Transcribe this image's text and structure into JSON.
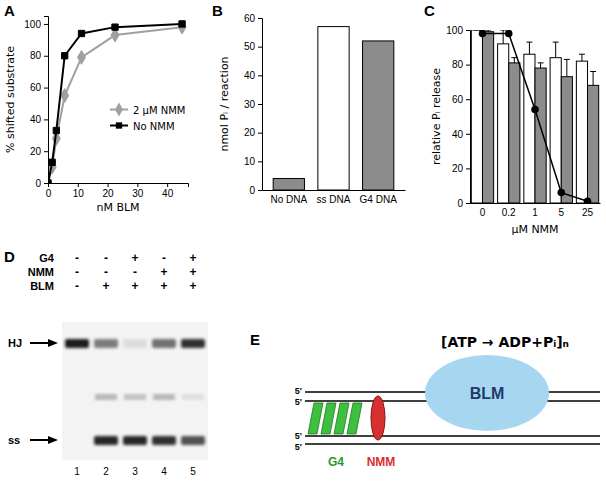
{
  "panel_labels": [
    "A",
    "B",
    "C",
    "D",
    "E"
  ],
  "chart_data": [
    {
      "type": "line",
      "xlabel": "nM BLM",
      "ylabel": "% shifted substrate",
      "x": [
        0,
        1.4,
        2.8,
        5.6,
        11.25,
        22.5,
        45
      ],
      "series": [
        {
          "name": "2 μM NMM",
          "color": "#a0a0a0",
          "marker": "diamond",
          "values": [
            0,
            10,
            28,
            55,
            79,
            93,
            98
          ]
        },
        {
          "name": "No NMM",
          "color": "#000000",
          "marker": "square",
          "values": [
            0,
            13,
            33,
            80,
            94,
            98,
            100
          ]
        }
      ],
      "xlim": [
        0,
        47
      ],
      "ylim": [
        0,
        105
      ],
      "xticks": [
        0,
        10,
        20,
        30,
        40
      ],
      "yticks": [
        0,
        20,
        40,
        60,
        80,
        100
      ],
      "legend": "right"
    },
    {
      "type": "bar",
      "ylabel": "nmol Pᵢ / reaction",
      "categories": [
        "No DNA",
        "ss DNA",
        "G4 DNA"
      ],
      "values": [
        4,
        57,
        52
      ],
      "colors": [
        "#8c8c8c",
        "#ffffff",
        "#8c8c8c"
      ],
      "ylim": [
        0,
        60
      ],
      "yticks": [
        0,
        10,
        20,
        30,
        40,
        50,
        60
      ]
    },
    {
      "type": "bar",
      "xlabel": "μM NMM",
      "ylabel": "relative Pᵢ release",
      "categories": [
        "0",
        "0.2",
        "1",
        "5",
        "25"
      ],
      "series": [
        {
          "color": "#ffffff",
          "values": [
            100,
            92,
            86,
            84,
            82
          ],
          "errors": [
            0,
            8,
            7,
            9,
            4
          ]
        },
        {
          "color": "#8c8c8c",
          "values": [
            99,
            81,
            78,
            73,
            68
          ],
          "errors": [
            1,
            3,
            3,
            10,
            8
          ]
        },
        {
          "type": "line",
          "color": "#000000",
          "marker": "circle",
          "values": [
            98,
            98,
            54,
            6,
            1
          ]
        }
      ],
      "ylim": [
        0,
        100
      ],
      "yticks": [
        0,
        20,
        40,
        60,
        80,
        100
      ]
    }
  ],
  "gel": {
    "rows": [
      {
        "label": "G4",
        "marks": [
          "-",
          "-",
          "+",
          "-",
          "+"
        ]
      },
      {
        "label": "NMM",
        "marks": [
          "-",
          "-",
          "-",
          "+",
          "+"
        ]
      },
      {
        "label": "BLM",
        "marks": [
          "-",
          "+",
          "+",
          "+",
          "+"
        ]
      }
    ],
    "lanes": [
      "1",
      "2",
      "3",
      "4",
      "5"
    ],
    "bands": [
      {
        "label": "HJ",
        "intensity": [
          1.0,
          0.55,
          0.1,
          0.6,
          0.9
        ]
      },
      {
        "label": "ss",
        "intensity": [
          0.0,
          0.95,
          0.95,
          0.9,
          0.75
        ]
      }
    ],
    "smear": [
      0.0,
      0.3,
      0.25,
      0.3,
      0.1
    ]
  },
  "diagram": {
    "reaction": "[ATP → ADP+Pᵢ]ₙ",
    "enzyme": "BLM",
    "g4": "G4",
    "ligand": "NMM",
    "ends": [
      "5'",
      "5'",
      "5'",
      "5'"
    ]
  }
}
